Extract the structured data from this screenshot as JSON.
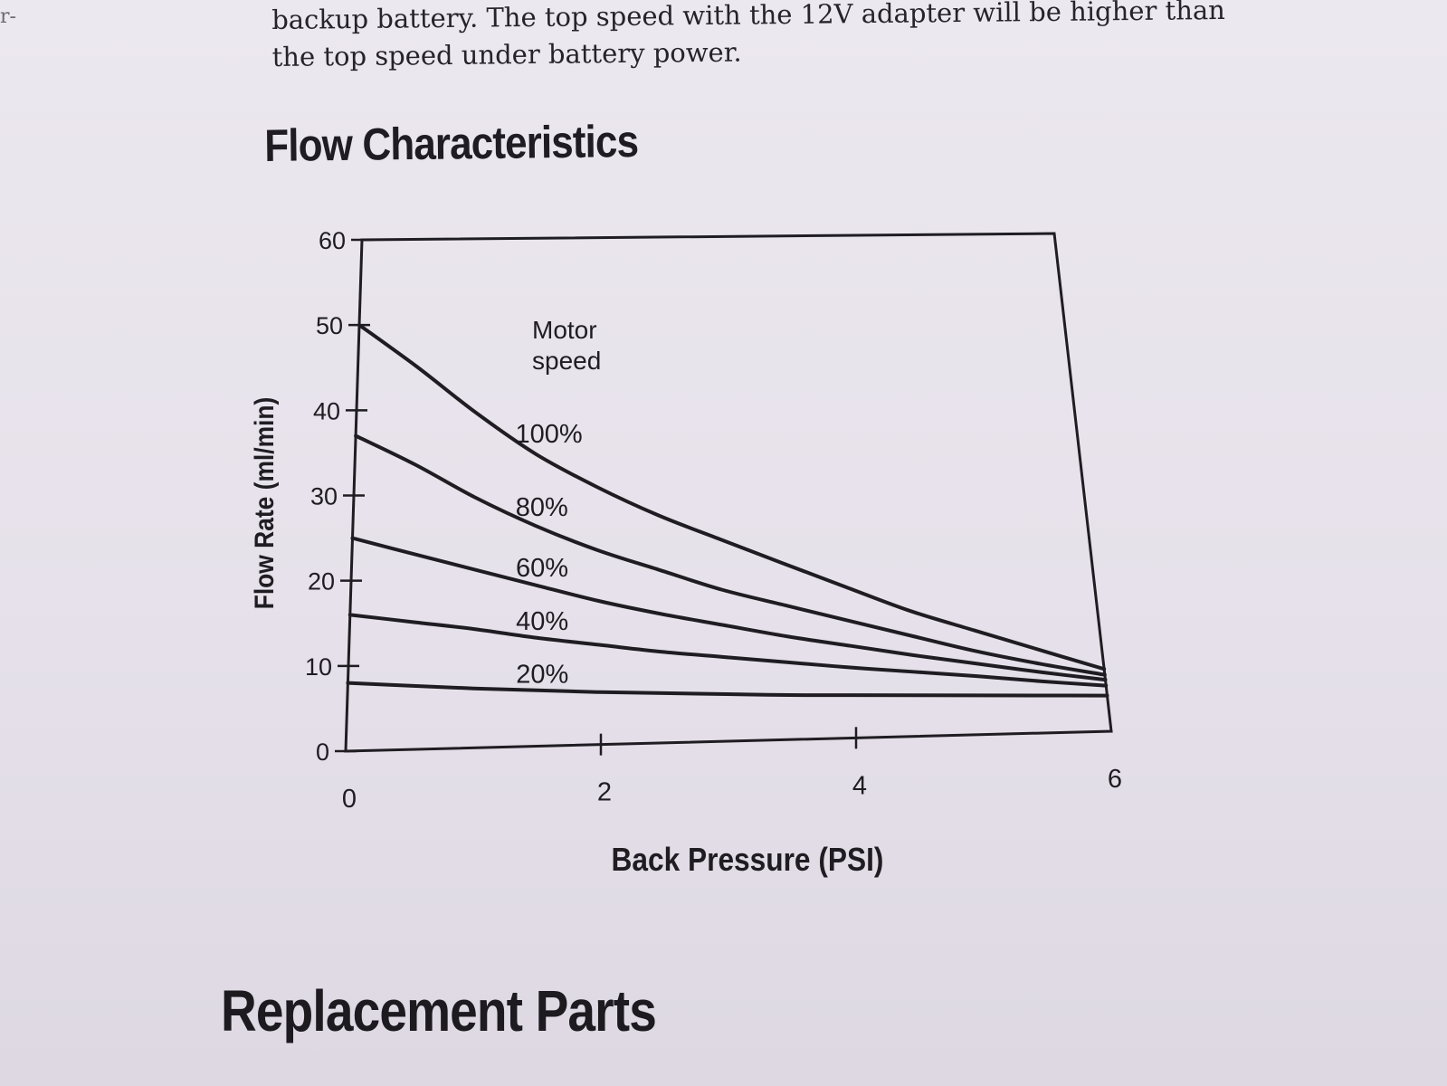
{
  "page": {
    "margin_mark": "r-",
    "body_lines": [
      "backup battery. The top speed with the 12V adapter will be higher than",
      "the top speed under battery power."
    ],
    "heading_flow": "Flow Characteristics",
    "heading_parts": "Replacement Parts"
  },
  "chart_data": {
    "type": "line",
    "title": "",
    "xlabel": "Back Pressure (PSI)",
    "ylabel": "Flow Rate (ml/min)",
    "xlim": [
      0,
      6
    ],
    "ylim": [
      0,
      60
    ],
    "x_ticks": [
      "0",
      "2",
      "4",
      "6"
    ],
    "y_ticks": [
      "0",
      "10",
      "20",
      "30",
      "40",
      "50",
      "60"
    ],
    "legend_title": "Motor speed",
    "grid": false,
    "x": [
      0,
      0.5,
      1,
      1.5,
      2,
      2.5,
      3,
      3.5,
      4,
      4.5,
      5,
      5.5,
      6
    ],
    "series": [
      {
        "name": "100%",
        "values": [
          50,
          45,
          39.5,
          34.5,
          30.5,
          27,
          24,
          21,
          18,
          15,
          12.5,
          10,
          7.5
        ]
      },
      {
        "name": "80%",
        "values": [
          37,
          33.5,
          29.5,
          26,
          23,
          20.5,
          18,
          16,
          14,
          12,
          10,
          8.3,
          6.8
        ]
      },
      {
        "name": "60%",
        "values": [
          25,
          23,
          21,
          19,
          17,
          15.3,
          13.8,
          12.3,
          11,
          9.7,
          8.5,
          7.3,
          6.2
        ]
      },
      {
        "name": "40%",
        "values": [
          16,
          15,
          14,
          12.8,
          11.8,
          10.8,
          10,
          9.2,
          8.4,
          7.7,
          7,
          6.2,
          5.5
        ]
      },
      {
        "name": "20%",
        "values": [
          8,
          7.5,
          7,
          6.6,
          6.2,
          5.9,
          5.6,
          5.3,
          5.1,
          4.9,
          4.7,
          4.5,
          4.3
        ]
      }
    ]
  }
}
